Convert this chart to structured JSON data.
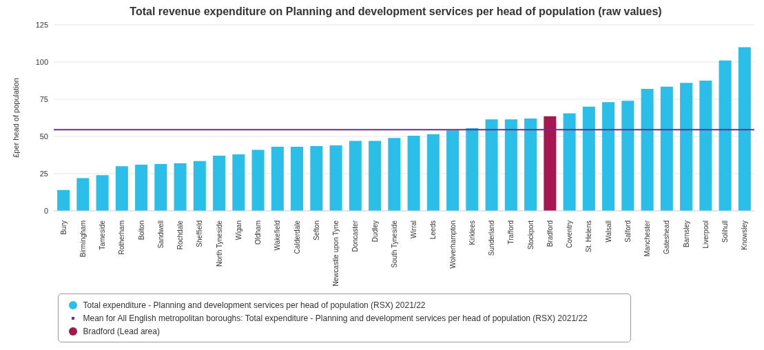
{
  "chart_data": {
    "type": "bar",
    "title": "Total revenue expenditure on Planning and development services per head of population (raw values)",
    "ylabel": "£per head of population",
    "categories": [
      "Bury",
      "Birmingham",
      "Tameside",
      "Rotherham",
      "Bolton",
      "Sandwell",
      "Rochdale",
      "Sheffield",
      "North Tyneside",
      "Wigan",
      "Oldham",
      "Wakefield",
      "Calderdale",
      "Sefton",
      "Newcastle upon Tyne",
      "Doncaster",
      "Dudley",
      "South Tyneside",
      "Wirral",
      "Leeds",
      "Wolverhampton",
      "Kirklees",
      "Sunderland",
      "Trafford",
      "Stockport",
      "Bradford",
      "Coventry",
      "St. Helens",
      "Walsall",
      "Salford",
      "Manchester",
      "Gateshead",
      "Barnsley",
      "Liverpool",
      "Solihull",
      "Knowsley"
    ],
    "stacked": true,
    "series": [
      {
        "name": "Total expenditure - Planning and development services per head of population (RSX) 2021/22",
        "color": "#2bbee8",
        "values": [
          14,
          22,
          24,
          30,
          31,
          31.5,
          32,
          33.5,
          37,
          38,
          41,
          43,
          43,
          43.5,
          44,
          47,
          47,
          49,
          50.5,
          51.5,
          54,
          55.5,
          61.5,
          61.5,
          62,
          null,
          65.5,
          70,
          73,
          74,
          82,
          83.5,
          86,
          87.5,
          101,
          110
        ]
      },
      {
        "name": "Bradford (Lead area)",
        "color": "#a6174f",
        "values": [
          null,
          null,
          null,
          null,
          null,
          null,
          null,
          null,
          null,
          null,
          null,
          null,
          null,
          null,
          null,
          null,
          null,
          null,
          null,
          null,
          null,
          null,
          null,
          null,
          null,
          63.5,
          null,
          null,
          null,
          null,
          null,
          null,
          null,
          null,
          null,
          null
        ]
      }
    ],
    "ref_lines": [
      {
        "axis": "y",
        "value": 54.5,
        "label": "Mean for All English metropolitan boroughs: Total expenditure - Planning and development services per head of population (RSX) 2021/22",
        "color": "#6f2c91"
      }
    ],
    "ylim": [
      0,
      125
    ],
    "yticks": [
      0,
      25,
      50,
      75,
      100,
      125
    ],
    "grid": "y",
    "legend": "bottom"
  }
}
